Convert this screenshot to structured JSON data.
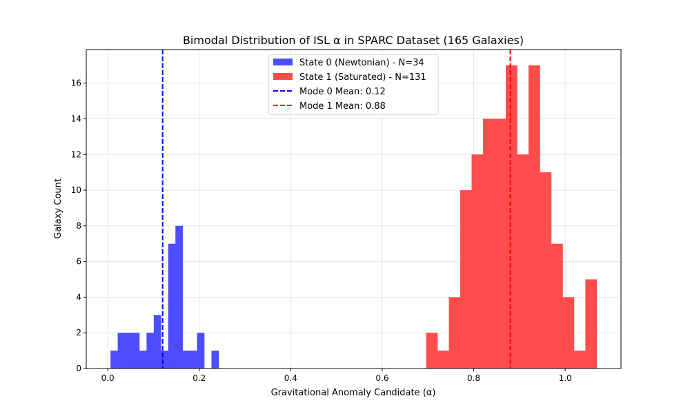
{
  "chart_data": {
    "type": "bar",
    "title": "Bimodal Distribution of ISL α in SPARC Dataset (165 Galaxies)",
    "xlabel": "Gravitational Anomaly Candidate (α)",
    "ylabel": "Galaxy Count",
    "xlim": [
      -0.047,
      1.122
    ],
    "ylim": [
      0,
      17.88
    ],
    "xticks": [
      0.0,
      0.2,
      0.4,
      0.6,
      0.8,
      1.0
    ],
    "xtick_labels": [
      "0.0",
      "0.2",
      "0.4",
      "0.6",
      "0.8",
      "1.0"
    ],
    "yticks": [
      0,
      2,
      4,
      6,
      8,
      10,
      12,
      14,
      16
    ],
    "ytick_labels": [
      "0",
      "2",
      "4",
      "6",
      "8",
      "10",
      "12",
      "14",
      "16"
    ],
    "grid": true,
    "legend_position": "top-center",
    "series": [
      {
        "name": "State 0 (Newtonian) - N=34",
        "color": "#4d4dff",
        "bin_start": 0.006,
        "bin_end": 0.2425,
        "counts": [
          1,
          2,
          2,
          2,
          1,
          2,
          3,
          1,
          7,
          8,
          1,
          1,
          2,
          0,
          1
        ]
      },
      {
        "name": "State 1 (Saturated) - N=131",
        "color": "#ff4d4d",
        "bin_start": 0.696,
        "bin_end": 1.069,
        "counts": [
          2,
          1,
          4,
          10,
          12,
          14,
          14,
          17,
          12,
          17,
          11,
          7,
          4,
          1,
          5
        ]
      }
    ],
    "vlines": [
      {
        "name": "Mode 0 Mean: 0.12",
        "x": 0.12,
        "color": "#0000ff",
        "style": "dashed"
      },
      {
        "name": "Mode 1 Mean: 0.88",
        "x": 0.88,
        "color": "#ff0000",
        "style": "dashed"
      }
    ]
  }
}
